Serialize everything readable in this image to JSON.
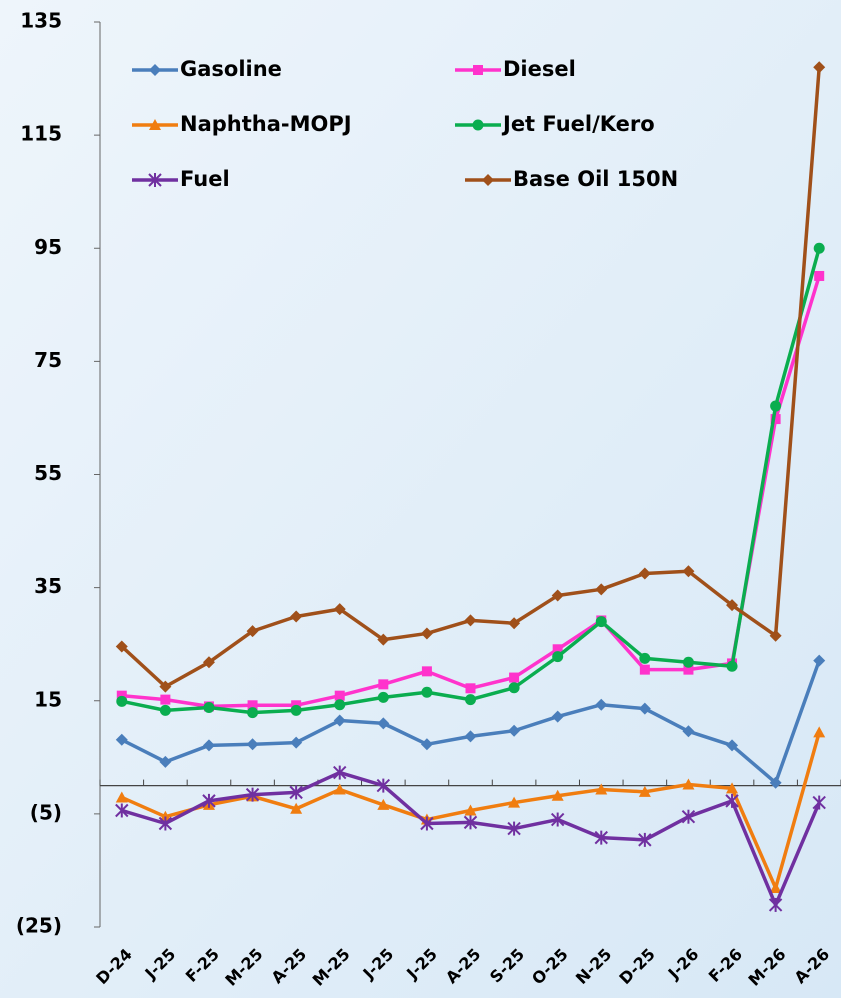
{
  "chart_data": {
    "type": "line",
    "categories": [
      "D-24",
      "J-25",
      "F-25",
      "M-25",
      "A-25",
      "M-25",
      "J-25",
      "J-25",
      "A-25",
      "S-25",
      "O-25",
      "N-25",
      "D-25",
      "J-26",
      "F-26",
      "M-26",
      "A-26"
    ],
    "ylim": [
      -25,
      135
    ],
    "yticks": [
      {
        "value": -25,
        "label": "(25)"
      },
      {
        "value": -5,
        "label": "(5)"
      },
      15,
      35,
      55,
      75,
      95,
      115,
      135
    ],
    "series": [
      {
        "name": "Gasoline",
        "color": "#4a7ebb",
        "marker": "diamond",
        "values": [
          8.1,
          4.2,
          7.1,
          7.3,
          7.6,
          11.5,
          11,
          7.3,
          8.7,
          9.7,
          12.2,
          14.3,
          13.6,
          9.6,
          7.1,
          0.5,
          22.1
        ]
      },
      {
        "name": "Diesel",
        "color": "#ff33cc",
        "marker": "square",
        "values": [
          15.9,
          15.2,
          14,
          14.2,
          14.2,
          15.9,
          17.9,
          20.2,
          17.2,
          19.1,
          24.1,
          29.2,
          20.5,
          20.5,
          21.6,
          64.8,
          90.1
        ]
      },
      {
        "name": "Naphtha-MOPJ",
        "color": "#f07d10",
        "marker": "triangle",
        "values": [
          -2.1,
          -5.5,
          -3.4,
          -1.9,
          -4.1,
          -0.7,
          -3.4,
          -6,
          -4.4,
          -3,
          -1.8,
          -0.7,
          -1.1,
          0.2,
          -0.5,
          -18.1,
          9.4
        ]
      },
      {
        "name": "Jet Fuel/Kero",
        "color": "#0aad4f",
        "marker": "circle",
        "values": [
          14.9,
          13.3,
          13.8,
          12.9,
          13.3,
          14.3,
          15.6,
          16.5,
          15.2,
          17.3,
          22.8,
          29,
          22.5,
          21.8,
          21.1,
          67.1,
          95
        ]
      },
      {
        "name": "Fuel",
        "color": "#7030a0",
        "marker": "star",
        "values": [
          -4.4,
          -6.7,
          -2.7,
          -1.6,
          -1.2,
          2.3,
          0,
          -6.7,
          -6.5,
          -7.6,
          -6,
          -9.2,
          -9.6,
          -5.5,
          -2.7,
          -21.1,
          -3
        ]
      },
      {
        "name": "Base Oil 150N",
        "color": "#a0501a",
        "marker": "diamond",
        "values": [
          24.6,
          17.5,
          21.8,
          27.3,
          29.9,
          31.2,
          25.8,
          26.9,
          29.2,
          28.7,
          33.6,
          34.7,
          37.5,
          37.9,
          31.9,
          26.5,
          127
        ]
      }
    ]
  }
}
